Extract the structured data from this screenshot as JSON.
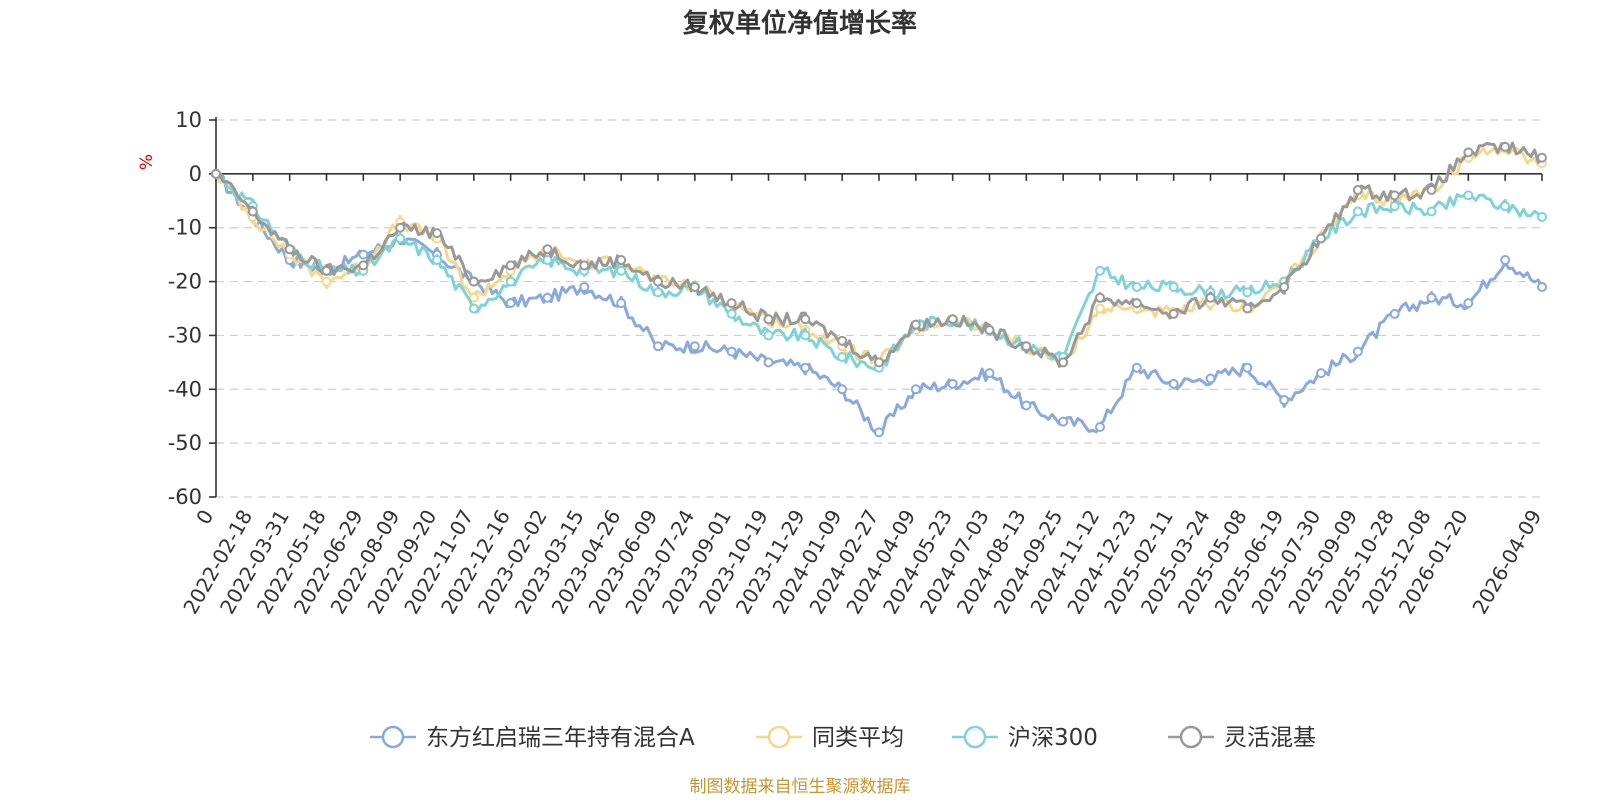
{
  "chart_data": {
    "type": "line",
    "title": "复权单位净值增长率",
    "ylabel": "%",
    "ylim": [
      -60,
      10
    ],
    "yticks": [
      10,
      0,
      -10,
      -20,
      -30,
      -40,
      -50,
      -60
    ],
    "x_origin_label": "0",
    "xticks": [
      "2022-02-18",
      "2022-03-31",
      "2022-05-18",
      "2022-06-29",
      "2022-08-09",
      "2022-09-20",
      "2022-11-07",
      "2022-12-16",
      "2023-02-02",
      "2023-03-15",
      "2023-04-26",
      "2023-06-09",
      "2023-07-24",
      "2023-09-01",
      "2023-10-19",
      "2023-11-29",
      "2024-01-09",
      "2024-02-27",
      "2024-04-09",
      "2024-05-23",
      "2024-07-03",
      "2024-08-13",
      "2024-09-25",
      "2024-11-12",
      "2024-12-23",
      "2025-02-11",
      "2025-03-24",
      "2025-05-08",
      "2025-06-19",
      "2025-07-30",
      "2025-09-09",
      "2025-10-28",
      "2025-12-08",
      "2026-01-20",
      "2026-04-09"
    ],
    "x": [
      0,
      1,
      2,
      3,
      4,
      5,
      6,
      7,
      8,
      9,
      10,
      11,
      12,
      13,
      14,
      15,
      16,
      17,
      18,
      19,
      20,
      21,
      22,
      23,
      24,
      25,
      26,
      27,
      28,
      29,
      30,
      31,
      32,
      33,
      34,
      35,
      36
    ],
    "series": [
      {
        "name": "东方红启瑞三年持有混合A",
        "color": "#8aa9dc",
        "values": [
          0,
          -8,
          -16,
          -18,
          -15,
          -12,
          -15,
          -20,
          -24,
          -23,
          -21,
          -24,
          -32,
          -32,
          -33,
          -35,
          -36,
          -40,
          -48,
          -40,
          -39,
          -37,
          -43,
          -46,
          -47,
          -36,
          -39,
          -38,
          -36,
          -42,
          -37,
          -33,
          -26,
          -23,
          -24,
          -16,
          -21
        ]
      },
      {
        "name": "同类平均",
        "color": "#f7d78c",
        "values": [
          0,
          -8,
          -15,
          -20,
          -17,
          -9,
          -12,
          -23,
          -18,
          -14,
          -17,
          -16,
          -20,
          -21,
          -24,
          -27,
          -29,
          -32,
          -35,
          -29,
          -27,
          -29,
          -32,
          -35,
          -25,
          -25,
          -26,
          -24,
          -25,
          -20,
          -12,
          -4,
          -5,
          -3,
          3,
          5,
          2
        ]
      },
      {
        "name": "沪深300",
        "color": "#7fd3d8",
        "values": [
          0,
          -6,
          -14,
          -18,
          -18,
          -12,
          -16,
          -25,
          -20,
          -16,
          -18,
          -18,
          -22,
          -21,
          -26,
          -30,
          -30,
          -34,
          -36,
          -28,
          -27,
          -29,
          -32,
          -34,
          -18,
          -21,
          -21,
          -22,
          -22,
          -20,
          -12,
          -7,
          -6,
          -7,
          -4,
          -6,
          -8
        ]
      },
      {
        "name": "灵活混基",
        "color": "#999999",
        "values": [
          0,
          -7,
          -14,
          -18,
          -17,
          -10,
          -11,
          -20,
          -17,
          -14,
          -17,
          -16,
          -20,
          -21,
          -24,
          -27,
          -27,
          -31,
          -35,
          -28,
          -27,
          -29,
          -32,
          -35,
          -23,
          -24,
          -26,
          -23,
          -25,
          -21,
          -12,
          -3,
          -4,
          -3,
          4,
          5,
          3
        ]
      }
    ]
  },
  "source_note": "制图数据来自恒生聚源数据库"
}
